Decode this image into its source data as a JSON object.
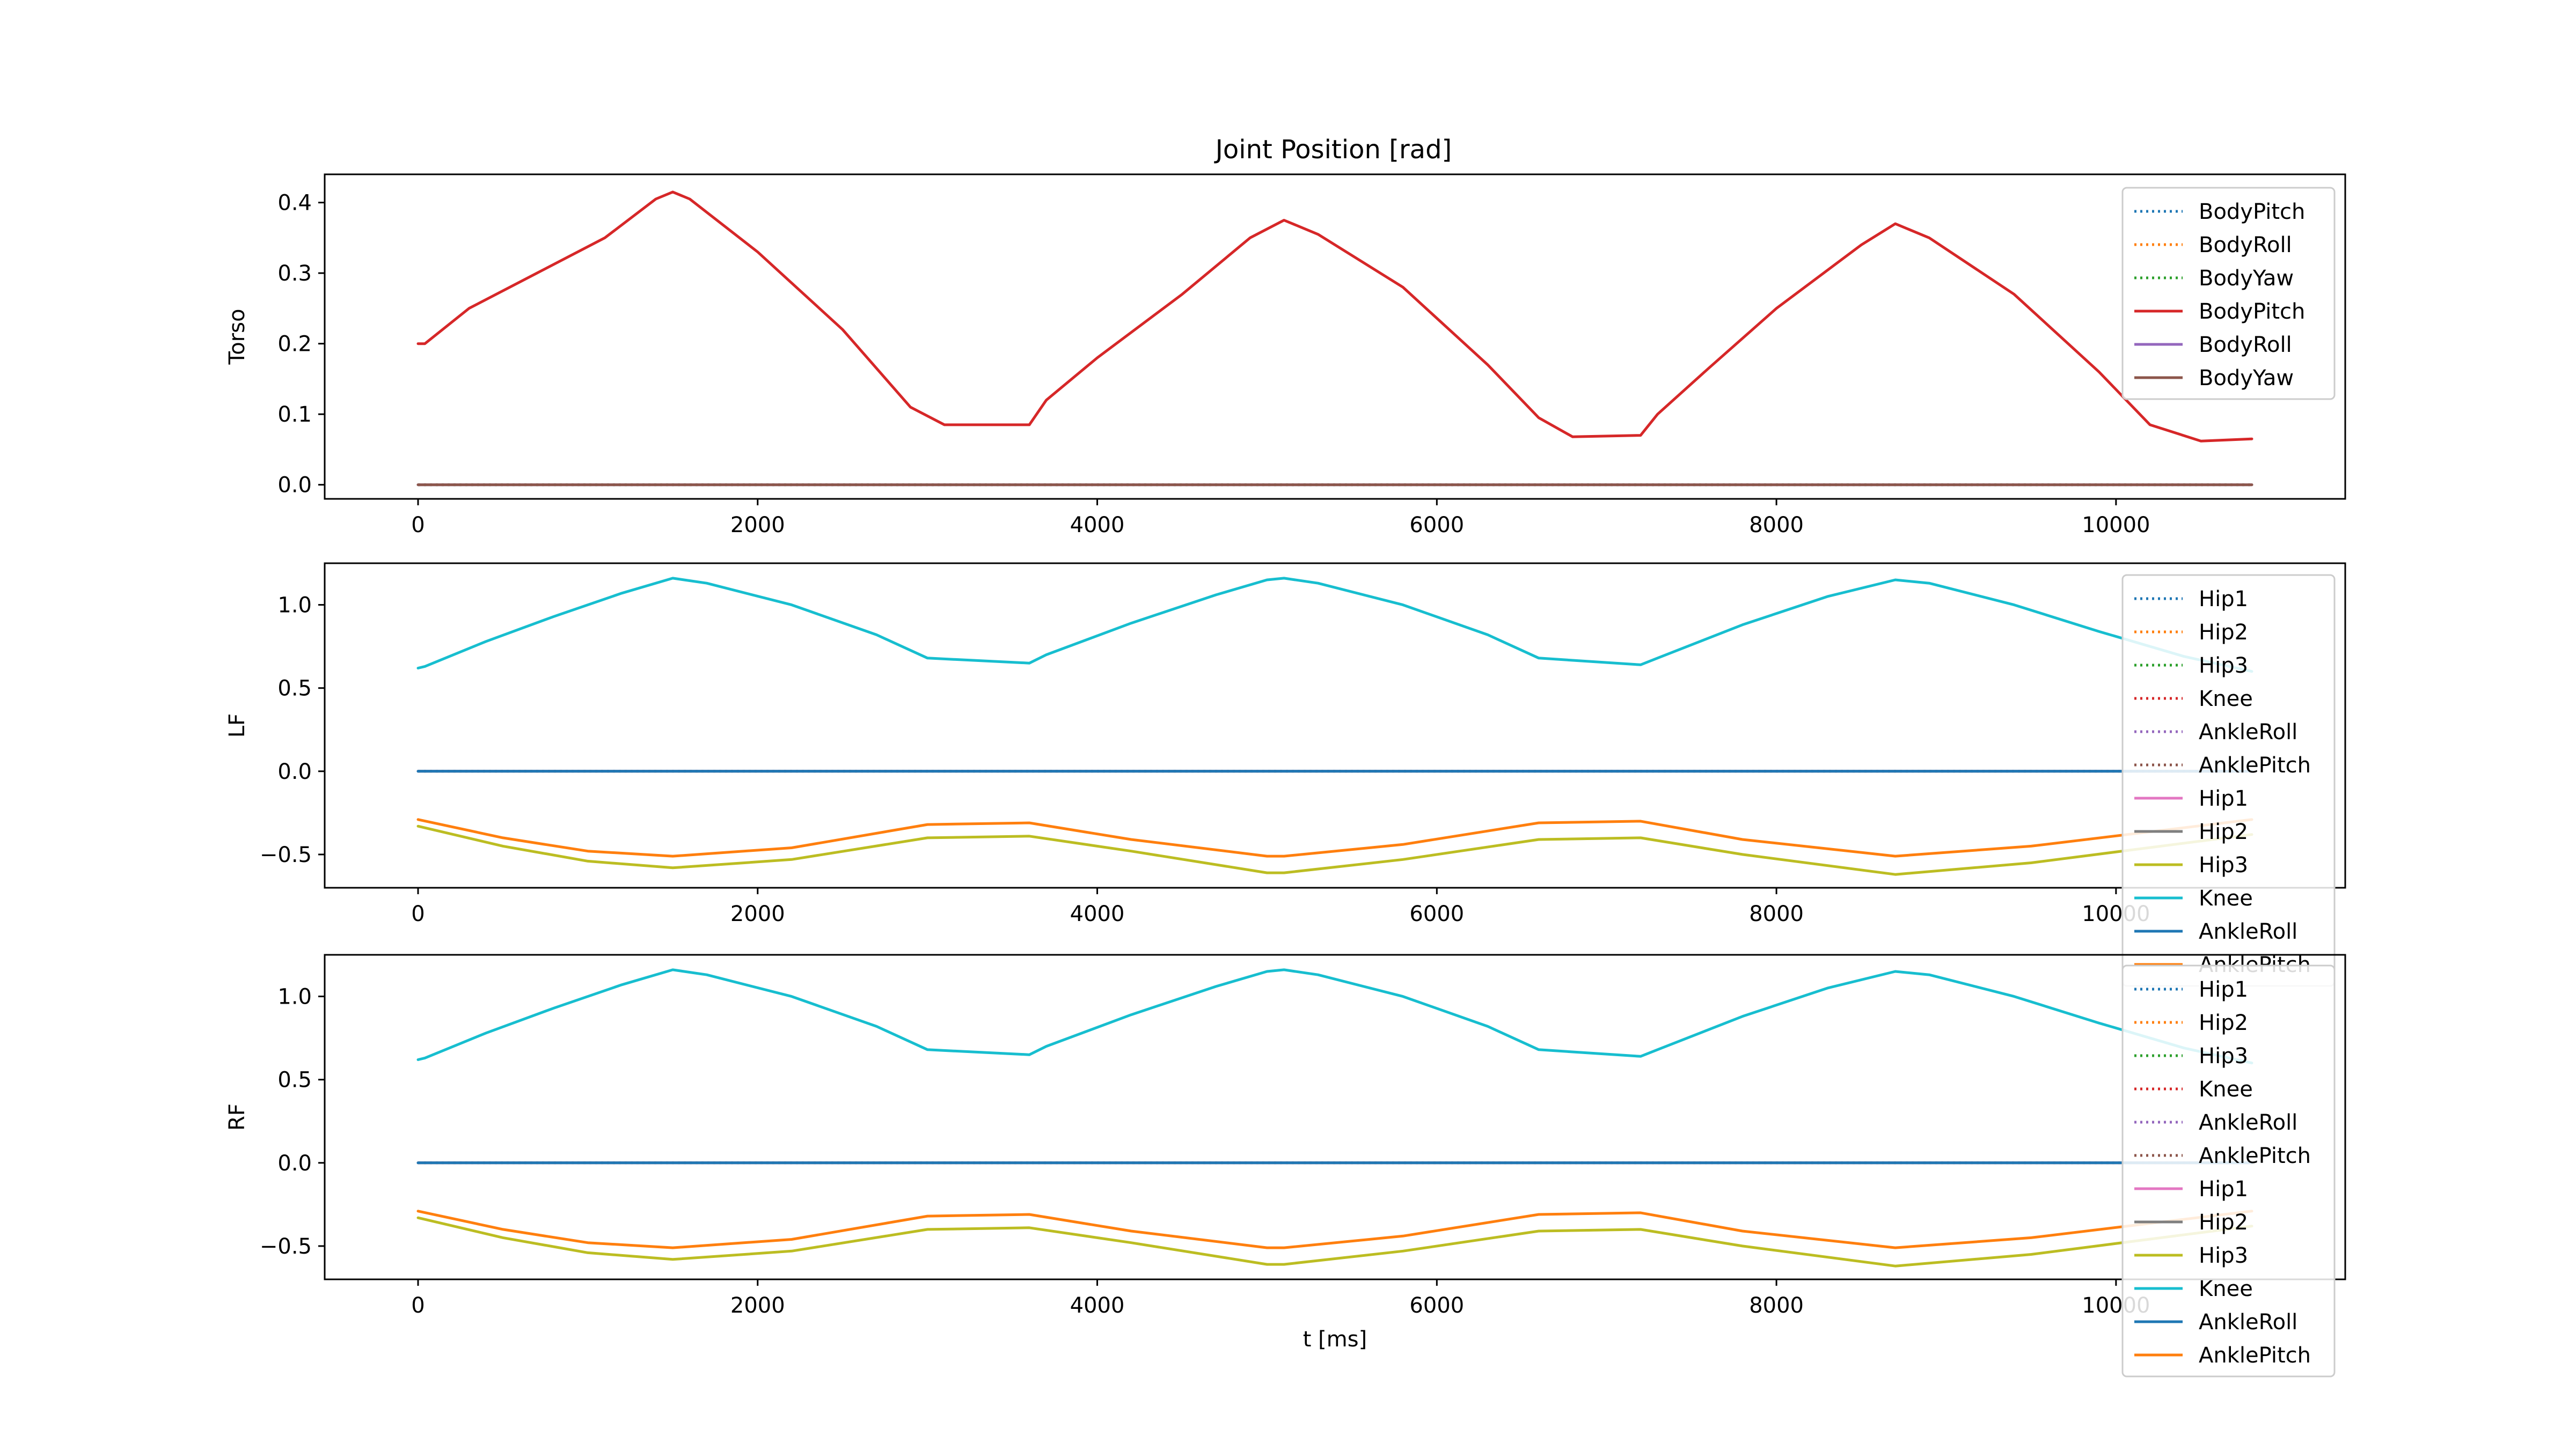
{
  "figure": {
    "title": "Joint Position [rad]"
  },
  "chart_data": [
    {
      "type": "line",
      "ylabel": "Torso",
      "xlabel": "",
      "xlim": [
        -550,
        11350
      ],
      "ylim": [
        -0.02,
        0.44
      ],
      "xticks": [
        0,
        2000,
        4000,
        6000,
        8000,
        10000
      ],
      "yticks": [
        0.0,
        0.1,
        0.2,
        0.3,
        0.4
      ],
      "ytick_labels": [
        "0.0",
        "0.1",
        "0.2",
        "0.3",
        "0.4"
      ],
      "legend_position": "top-right",
      "series": [
        {
          "name": "BodyPitch",
          "color": "#1f77b4",
          "style": "dotted",
          "x": [
            0,
            10800
          ],
          "y": [
            0,
            0
          ]
        },
        {
          "name": "BodyRoll",
          "color": "#ff7f0e",
          "style": "dotted",
          "x": [
            0,
            10800
          ],
          "y": [
            0,
            0
          ]
        },
        {
          "name": "BodyYaw",
          "color": "#2ca02c",
          "style": "dotted",
          "x": [
            0,
            10800
          ],
          "y": [
            0,
            0
          ]
        },
        {
          "name": "BodyPitch",
          "color": "#d62728",
          "style": "solid",
          "x": [
            0,
            40,
            300,
            700,
            1100,
            1400,
            1500,
            1600,
            2000,
            2500,
            2900,
            3100,
            3600,
            3700,
            4000,
            4500,
            4900,
            5100,
            5300,
            5800,
            6300,
            6600,
            6800,
            7200,
            7300,
            7600,
            8000,
            8500,
            8700,
            8900,
            9400,
            9900,
            10200,
            10500,
            10800
          ],
          "y": [
            0.2,
            0.2,
            0.25,
            0.3,
            0.35,
            0.405,
            0.415,
            0.405,
            0.33,
            0.22,
            0.11,
            0.085,
            0.085,
            0.12,
            0.18,
            0.27,
            0.35,
            0.375,
            0.355,
            0.28,
            0.17,
            0.095,
            0.068,
            0.07,
            0.1,
            0.165,
            0.25,
            0.34,
            0.37,
            0.35,
            0.27,
            0.16,
            0.085,
            0.062,
            0.065
          ]
        },
        {
          "name": "BodyRoll",
          "color": "#9467bd",
          "style": "solid",
          "x": [
            0,
            10800
          ],
          "y": [
            0,
            0
          ]
        },
        {
          "name": "BodyYaw",
          "color": "#8c564b",
          "style": "solid",
          "x": [
            0,
            10800
          ],
          "y": [
            0,
            0
          ]
        }
      ]
    },
    {
      "type": "line",
      "ylabel": "LF",
      "xlabel": "",
      "xlim": [
        -550,
        11350
      ],
      "ylim": [
        -0.7,
        1.25
      ],
      "xticks": [
        0,
        2000,
        4000,
        6000,
        8000,
        10000
      ],
      "yticks": [
        -0.5,
        0.0,
        0.5,
        1.0
      ],
      "ytick_labels": [
        "−0.5",
        "0.0",
        "0.5",
        "1.0"
      ],
      "legend_position": "top-right",
      "series": [
        {
          "name": "Hip1",
          "color": "#1f77b4",
          "style": "dotted",
          "x": [
            0,
            10800
          ],
          "y": [
            0,
            0
          ]
        },
        {
          "name": "Hip2",
          "color": "#ff7f0e",
          "style": "dotted",
          "x": [
            0,
            10800
          ],
          "y": [
            0,
            0
          ]
        },
        {
          "name": "Hip3",
          "color": "#2ca02c",
          "style": "dotted",
          "x": [
            0,
            10800
          ],
          "y": [
            0,
            0
          ]
        },
        {
          "name": "Knee",
          "color": "#d62728",
          "style": "dotted",
          "x": [
            0,
            10800
          ],
          "y": [
            0,
            0
          ]
        },
        {
          "name": "AnkleRoll",
          "color": "#9467bd",
          "style": "dotted",
          "x": [
            0,
            10800
          ],
          "y": [
            0,
            0
          ]
        },
        {
          "name": "AnklePitch",
          "color": "#8c564b",
          "style": "dotted",
          "x": [
            0,
            10800
          ],
          "y": [
            0,
            0
          ]
        },
        {
          "name": "Hip1",
          "color": "#e377c2",
          "style": "solid",
          "x": [
            0,
            10800
          ],
          "y": [
            0,
            0
          ]
        },
        {
          "name": "Hip2",
          "color": "#7f7f7f",
          "style": "solid",
          "x": [
            0,
            10800
          ],
          "y": [
            0,
            0
          ]
        },
        {
          "name": "Hip3",
          "color": "#bcbd22",
          "style": "solid",
          "x": [
            0,
            500,
            1000,
            1500,
            2200,
            3000,
            3600,
            4200,
            5000,
            5100,
            5800,
            6600,
            7200,
            7800,
            8700,
            9500,
            10800
          ],
          "y": [
            -0.33,
            -0.45,
            -0.54,
            -0.58,
            -0.53,
            -0.4,
            -0.39,
            -0.48,
            -0.61,
            -0.61,
            -0.53,
            -0.41,
            -0.4,
            -0.5,
            -0.62,
            -0.55,
            -0.38
          ]
        },
        {
          "name": "Knee",
          "color": "#17becf",
          "style": "solid",
          "x": [
            0,
            40,
            400,
            800,
            1200,
            1500,
            1700,
            2200,
            2700,
            3000,
            3600,
            3700,
            4200,
            4700,
            5000,
            5100,
            5300,
            5800,
            6300,
            6600,
            7200,
            7300,
            7800,
            8300,
            8700,
            8900,
            9400,
            9900,
            10400,
            10800
          ],
          "y": [
            0.62,
            0.63,
            0.78,
            0.93,
            1.07,
            1.16,
            1.13,
            1.0,
            0.82,
            0.68,
            0.65,
            0.7,
            0.89,
            1.06,
            1.15,
            1.16,
            1.13,
            1.0,
            0.82,
            0.68,
            0.64,
            0.68,
            0.88,
            1.05,
            1.15,
            1.13,
            1.0,
            0.84,
            0.69,
            0.6
          ]
        },
        {
          "name": "AnkleRoll",
          "color": "#1f77b4",
          "style": "solid",
          "x": [
            0,
            10800
          ],
          "y": [
            0,
            0
          ]
        },
        {
          "name": "AnklePitch",
          "color": "#ff7f0e",
          "style": "solid",
          "x": [
            0,
            500,
            1000,
            1500,
            2200,
            3000,
            3600,
            4200,
            5000,
            5100,
            5800,
            6600,
            7200,
            7800,
            8700,
            9500,
            10800
          ],
          "y": [
            -0.29,
            -0.4,
            -0.48,
            -0.51,
            -0.46,
            -0.32,
            -0.31,
            -0.41,
            -0.51,
            -0.51,
            -0.44,
            -0.31,
            -0.3,
            -0.41,
            -0.51,
            -0.45,
            -0.29
          ]
        }
      ]
    },
    {
      "type": "line",
      "ylabel": "RF",
      "xlabel": "t [ms]",
      "xlim": [
        -550,
        11350
      ],
      "ylim": [
        -0.7,
        1.25
      ],
      "xticks": [
        0,
        2000,
        4000,
        6000,
        8000,
        10000
      ],
      "yticks": [
        -0.5,
        0.0,
        0.5,
        1.0
      ],
      "ytick_labels": [
        "−0.5",
        "0.0",
        "0.5",
        "1.0"
      ],
      "legend_position": "top-right",
      "series": [
        {
          "name": "Hip1",
          "color": "#1f77b4",
          "style": "dotted",
          "x": [
            0,
            10800
          ],
          "y": [
            0,
            0
          ]
        },
        {
          "name": "Hip2",
          "color": "#ff7f0e",
          "style": "dotted",
          "x": [
            0,
            10800
          ],
          "y": [
            0,
            0
          ]
        },
        {
          "name": "Hip3",
          "color": "#2ca02c",
          "style": "dotted",
          "x": [
            0,
            10800
          ],
          "y": [
            0,
            0
          ]
        },
        {
          "name": "Knee",
          "color": "#d62728",
          "style": "dotted",
          "x": [
            0,
            10800
          ],
          "y": [
            0,
            0
          ]
        },
        {
          "name": "AnkleRoll",
          "color": "#9467bd",
          "style": "dotted",
          "x": [
            0,
            10800
          ],
          "y": [
            0,
            0
          ]
        },
        {
          "name": "AnklePitch",
          "color": "#8c564b",
          "style": "dotted",
          "x": [
            0,
            10800
          ],
          "y": [
            0,
            0
          ]
        },
        {
          "name": "Hip1",
          "color": "#e377c2",
          "style": "solid",
          "x": [
            0,
            10800
          ],
          "y": [
            0,
            0
          ]
        },
        {
          "name": "Hip2",
          "color": "#7f7f7f",
          "style": "solid",
          "x": [
            0,
            10800
          ],
          "y": [
            0,
            0
          ]
        },
        {
          "name": "Hip3",
          "color": "#bcbd22",
          "style": "solid",
          "x": [
            0,
            500,
            1000,
            1500,
            2200,
            3000,
            3600,
            4200,
            5000,
            5100,
            5800,
            6600,
            7200,
            7800,
            8700,
            9500,
            10800
          ],
          "y": [
            -0.33,
            -0.45,
            -0.54,
            -0.58,
            -0.53,
            -0.4,
            -0.39,
            -0.48,
            -0.61,
            -0.61,
            -0.53,
            -0.41,
            -0.4,
            -0.5,
            -0.62,
            -0.55,
            -0.38
          ]
        },
        {
          "name": "Knee",
          "color": "#17becf",
          "style": "solid",
          "x": [
            0,
            40,
            400,
            800,
            1200,
            1500,
            1700,
            2200,
            2700,
            3000,
            3600,
            3700,
            4200,
            4700,
            5000,
            5100,
            5300,
            5800,
            6300,
            6600,
            7200,
            7300,
            7800,
            8300,
            8700,
            8900,
            9400,
            9900,
            10400,
            10800
          ],
          "y": [
            0.62,
            0.63,
            0.78,
            0.93,
            1.07,
            1.16,
            1.13,
            1.0,
            0.82,
            0.68,
            0.65,
            0.7,
            0.89,
            1.06,
            1.15,
            1.16,
            1.13,
            1.0,
            0.82,
            0.68,
            0.64,
            0.68,
            0.88,
            1.05,
            1.15,
            1.13,
            1.0,
            0.84,
            0.69,
            0.6
          ]
        },
        {
          "name": "AnkleRoll",
          "color": "#1f77b4",
          "style": "solid",
          "x": [
            0,
            10800
          ],
          "y": [
            0,
            0
          ]
        },
        {
          "name": "AnklePitch",
          "color": "#ff7f0e",
          "style": "solid",
          "x": [
            0,
            500,
            1000,
            1500,
            2200,
            3000,
            3600,
            4200,
            5000,
            5100,
            5800,
            6600,
            7200,
            7800,
            8700,
            9500,
            10800
          ],
          "y": [
            -0.29,
            -0.4,
            -0.48,
            -0.51,
            -0.46,
            -0.32,
            -0.31,
            -0.41,
            -0.51,
            -0.51,
            -0.44,
            -0.31,
            -0.3,
            -0.41,
            -0.51,
            -0.45,
            -0.29
          ]
        }
      ]
    }
  ]
}
